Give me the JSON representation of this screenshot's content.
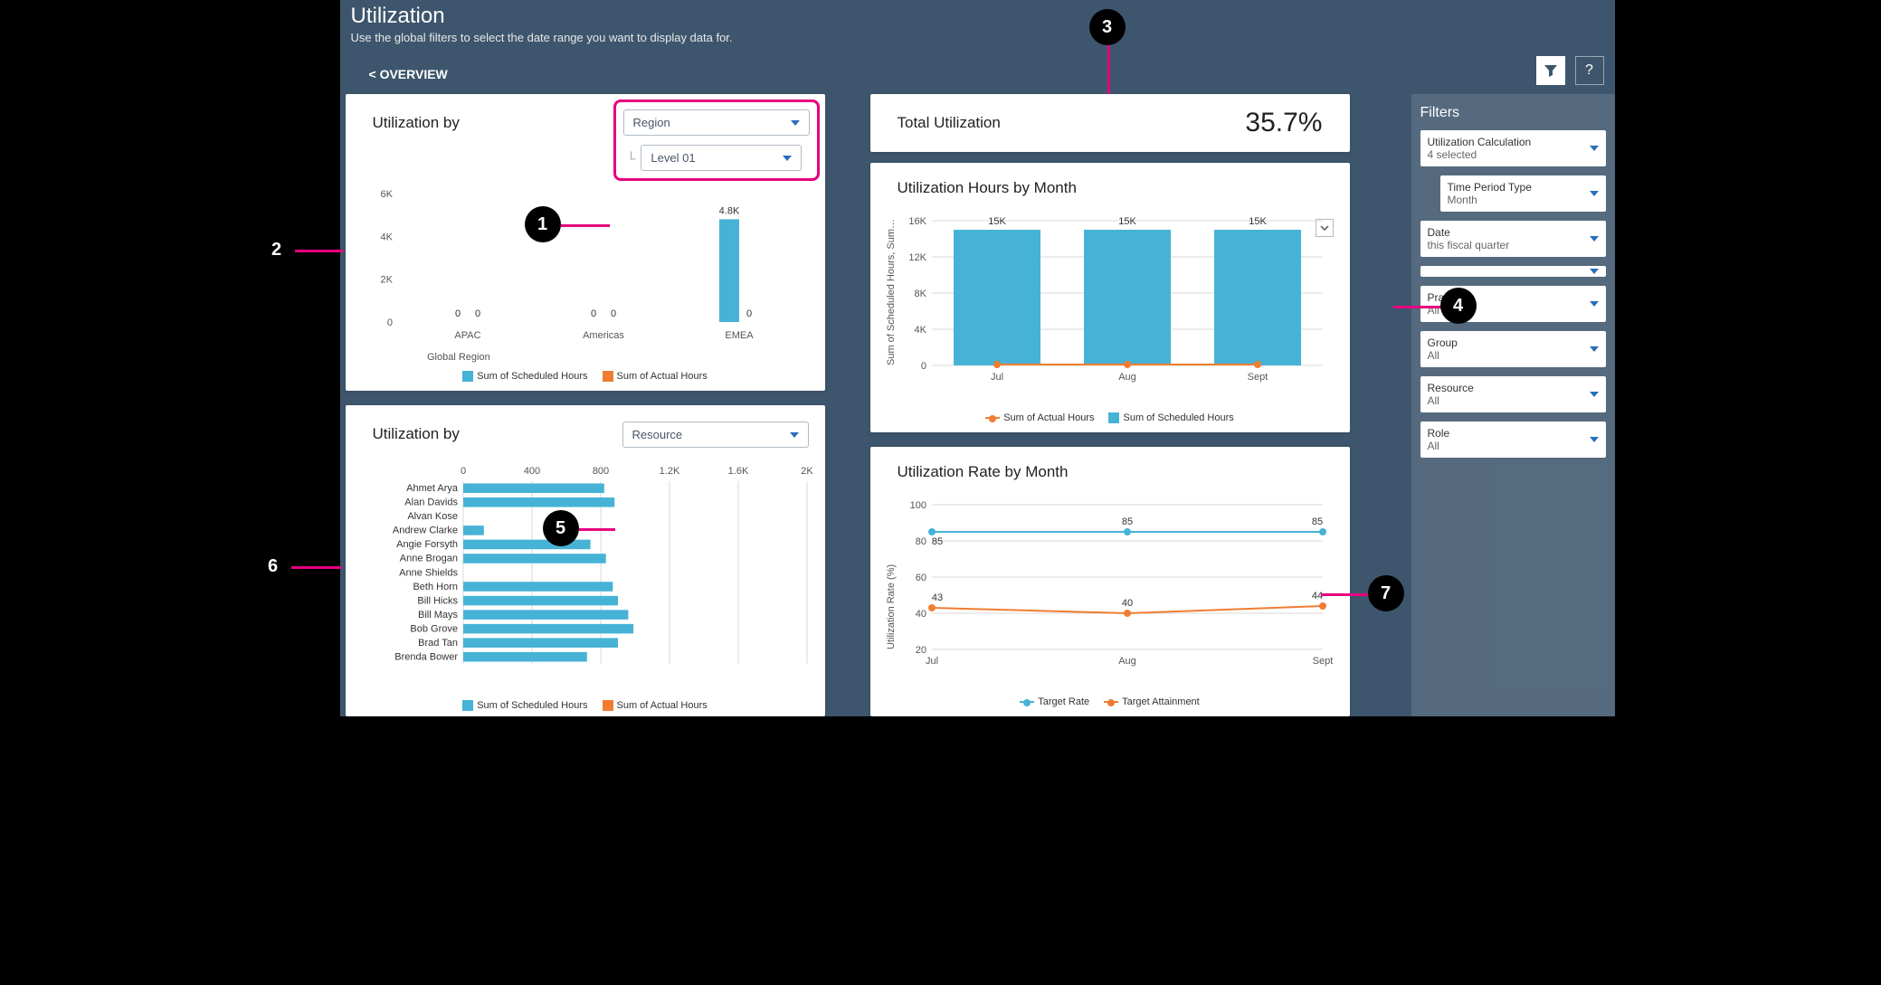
{
  "page": {
    "title": "Utilization",
    "subtitle": "Use the global filters to select the date range you want to display data for.",
    "back_link": "< OVERVIEW"
  },
  "colors": {
    "dashboard_bg": "#3e566d",
    "panel_bg": "#ffffff",
    "scheduled": "#46b3d6",
    "actual": "#ef7d31",
    "target_rate": "#46b3d6",
    "target_attain": "#ef7d31",
    "grid": "#d9d9d9",
    "axis": "#555555",
    "highlight": "#e6007e",
    "callout_bg": "#000000"
  },
  "callouts": [
    "1",
    "2",
    "3",
    "4",
    "5",
    "6",
    "7"
  ],
  "kpi": {
    "label": "Total Utilization",
    "value": "35.7%"
  },
  "region_chart": {
    "title": "Utilization by",
    "dropdown_primary": "Region",
    "dropdown_secondary": "Level 01",
    "type": "bar",
    "y_axis": {
      "ticks": [
        0,
        2,
        4,
        6
      ],
      "suffix": "K"
    },
    "x_label": "Global Region",
    "categories": [
      "APAC",
      "Americas",
      "EMEA"
    ],
    "series": [
      {
        "name": "Sum of Scheduled Hours",
        "color": "#46b3d6",
        "values_k": [
          0.01,
          0.01,
          4.8
        ],
        "labels": [
          "0",
          "0",
          "4.8K"
        ]
      },
      {
        "name": "Sum of Actual Hours",
        "color": "#ef7d31",
        "values_k": [
          0,
          0,
          0
        ],
        "labels": [
          "0",
          "0",
          "0"
        ]
      }
    ]
  },
  "resource_chart": {
    "title": "Utilization by",
    "dropdown": "Resource",
    "type": "horizontal_bar",
    "x_axis": {
      "ticks": [
        0,
        400,
        800,
        1200,
        1600,
        2000
      ],
      "labels": [
        "0",
        "400",
        "800",
        "1.2K",
        "1.6K",
        "2K"
      ]
    },
    "series_legend": [
      {
        "name": "Sum of Scheduled Hours",
        "color": "#46b3d6"
      },
      {
        "name": "Sum of Actual Hours",
        "color": "#ef7d31"
      }
    ],
    "rows": [
      {
        "name": "Ahmet Arya",
        "scheduled": 820,
        "actual": 0
      },
      {
        "name": "Alan Davids",
        "scheduled": 880,
        "actual": 0
      },
      {
        "name": "Alvan Kose",
        "scheduled": 0,
        "actual": 0
      },
      {
        "name": "Andrew Clarke",
        "scheduled": 120,
        "actual": 0
      },
      {
        "name": "Angie Forsyth",
        "scheduled": 740,
        "actual": 0
      },
      {
        "name": "Anne Brogan",
        "scheduled": 830,
        "actual": 0
      },
      {
        "name": "Anne Shields",
        "scheduled": 0,
        "actual": 0
      },
      {
        "name": "Beth Horn",
        "scheduled": 870,
        "actual": 0
      },
      {
        "name": "Bill Hicks",
        "scheduled": 900,
        "actual": 0
      },
      {
        "name": "Bill Mays",
        "scheduled": 960,
        "actual": 0
      },
      {
        "name": "Bob Grove",
        "scheduled": 990,
        "actual": 0
      },
      {
        "name": "Brad Tan",
        "scheduled": 900,
        "actual": 0
      },
      {
        "name": "Brenda Bower",
        "scheduled": 720,
        "actual": 0
      }
    ]
  },
  "hours_month_chart": {
    "title": "Utilization Hours by Month",
    "type": "bar_line",
    "y_axis": {
      "ticks": [
        0,
        4,
        8,
        12,
        16
      ],
      "suffix": "K",
      "label": "Sum of Scheduled Hours, Sum…"
    },
    "months": [
      "Jul",
      "Aug",
      "Sept"
    ],
    "scheduled_k": [
      15,
      15,
      15
    ],
    "scheduled_labels": [
      "15K",
      "15K",
      "15K"
    ],
    "actual_k": [
      0.1,
      0.1,
      0.1
    ],
    "legend": [
      {
        "name": "Sum of Actual Hours",
        "style": "line",
        "color": "#ef7d31"
      },
      {
        "name": "Sum of Scheduled Hours",
        "style": "swatch",
        "color": "#46b3d6"
      }
    ]
  },
  "rate_month_chart": {
    "title": "Utilization Rate by Month",
    "type": "line",
    "y_axis": {
      "ticks": [
        20,
        40,
        60,
        80,
        100
      ],
      "label": "Utilization Rate (%)"
    },
    "months": [
      "Jul",
      "Aug",
      "Sept"
    ],
    "target_rate": {
      "color": "#46b3d6",
      "values": [
        85,
        85,
        85
      ],
      "labels": [
        "85",
        "85",
        "85"
      ]
    },
    "target_attain": {
      "color": "#ef7d31",
      "values": [
        43,
        40,
        44
      ],
      "labels": [
        "43",
        "40",
        "44"
      ]
    },
    "legend": [
      {
        "name": "Target Rate",
        "color": "#46b3d6"
      },
      {
        "name": "Target Attainment",
        "color": "#ef7d31"
      }
    ]
  },
  "filters": {
    "title": "Filters",
    "items": [
      {
        "label": "Utilization Calculation",
        "value": "4 selected",
        "indent": false
      },
      {
        "label": "Time Period Type",
        "value": "Month",
        "indent": true
      },
      {
        "label": "Date",
        "value": "this fiscal quarter",
        "indent": false
      },
      {
        "label": "",
        "value": "",
        "indent": false
      },
      {
        "label": "Practice",
        "value": "All",
        "indent": false
      },
      {
        "label": "Group",
        "value": "All",
        "indent": false
      },
      {
        "label": "Resource",
        "value": "All",
        "indent": false
      },
      {
        "label": "Role",
        "value": "All",
        "indent": false
      }
    ]
  }
}
